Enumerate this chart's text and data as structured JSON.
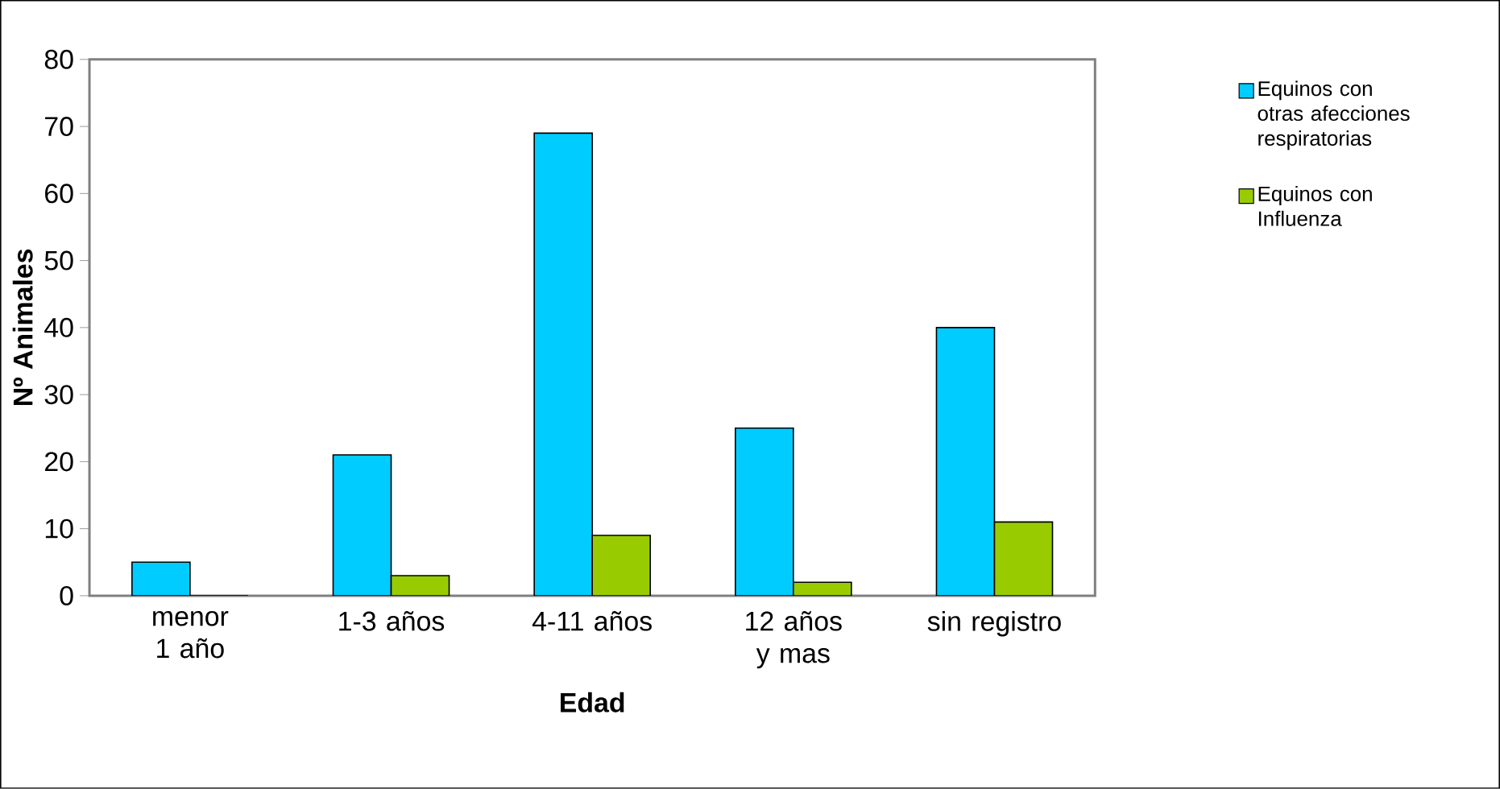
{
  "chart_data": {
    "type": "bar",
    "xlabel": "Edad",
    "ylabel": "Nº Animales",
    "categories": [
      "menor 1 año",
      "1-3 años",
      "4-11 años",
      "12 años y mas",
      "sin registro"
    ],
    "series": [
      {
        "name": "Equinos con otras afecciones respiratorias",
        "color": "#00ccff",
        "values": [
          5,
          21,
          69,
          25,
          40
        ]
      },
      {
        "name": "Equinos con Influenza",
        "color": "#99cc00",
        "values": [
          0,
          3,
          9,
          2,
          11
        ]
      }
    ],
    "ylim": [
      0,
      80
    ],
    "yticks": [
      0,
      10,
      20,
      30,
      40,
      50,
      60,
      70,
      80
    ],
    "grid": false,
    "legend": "right"
  }
}
